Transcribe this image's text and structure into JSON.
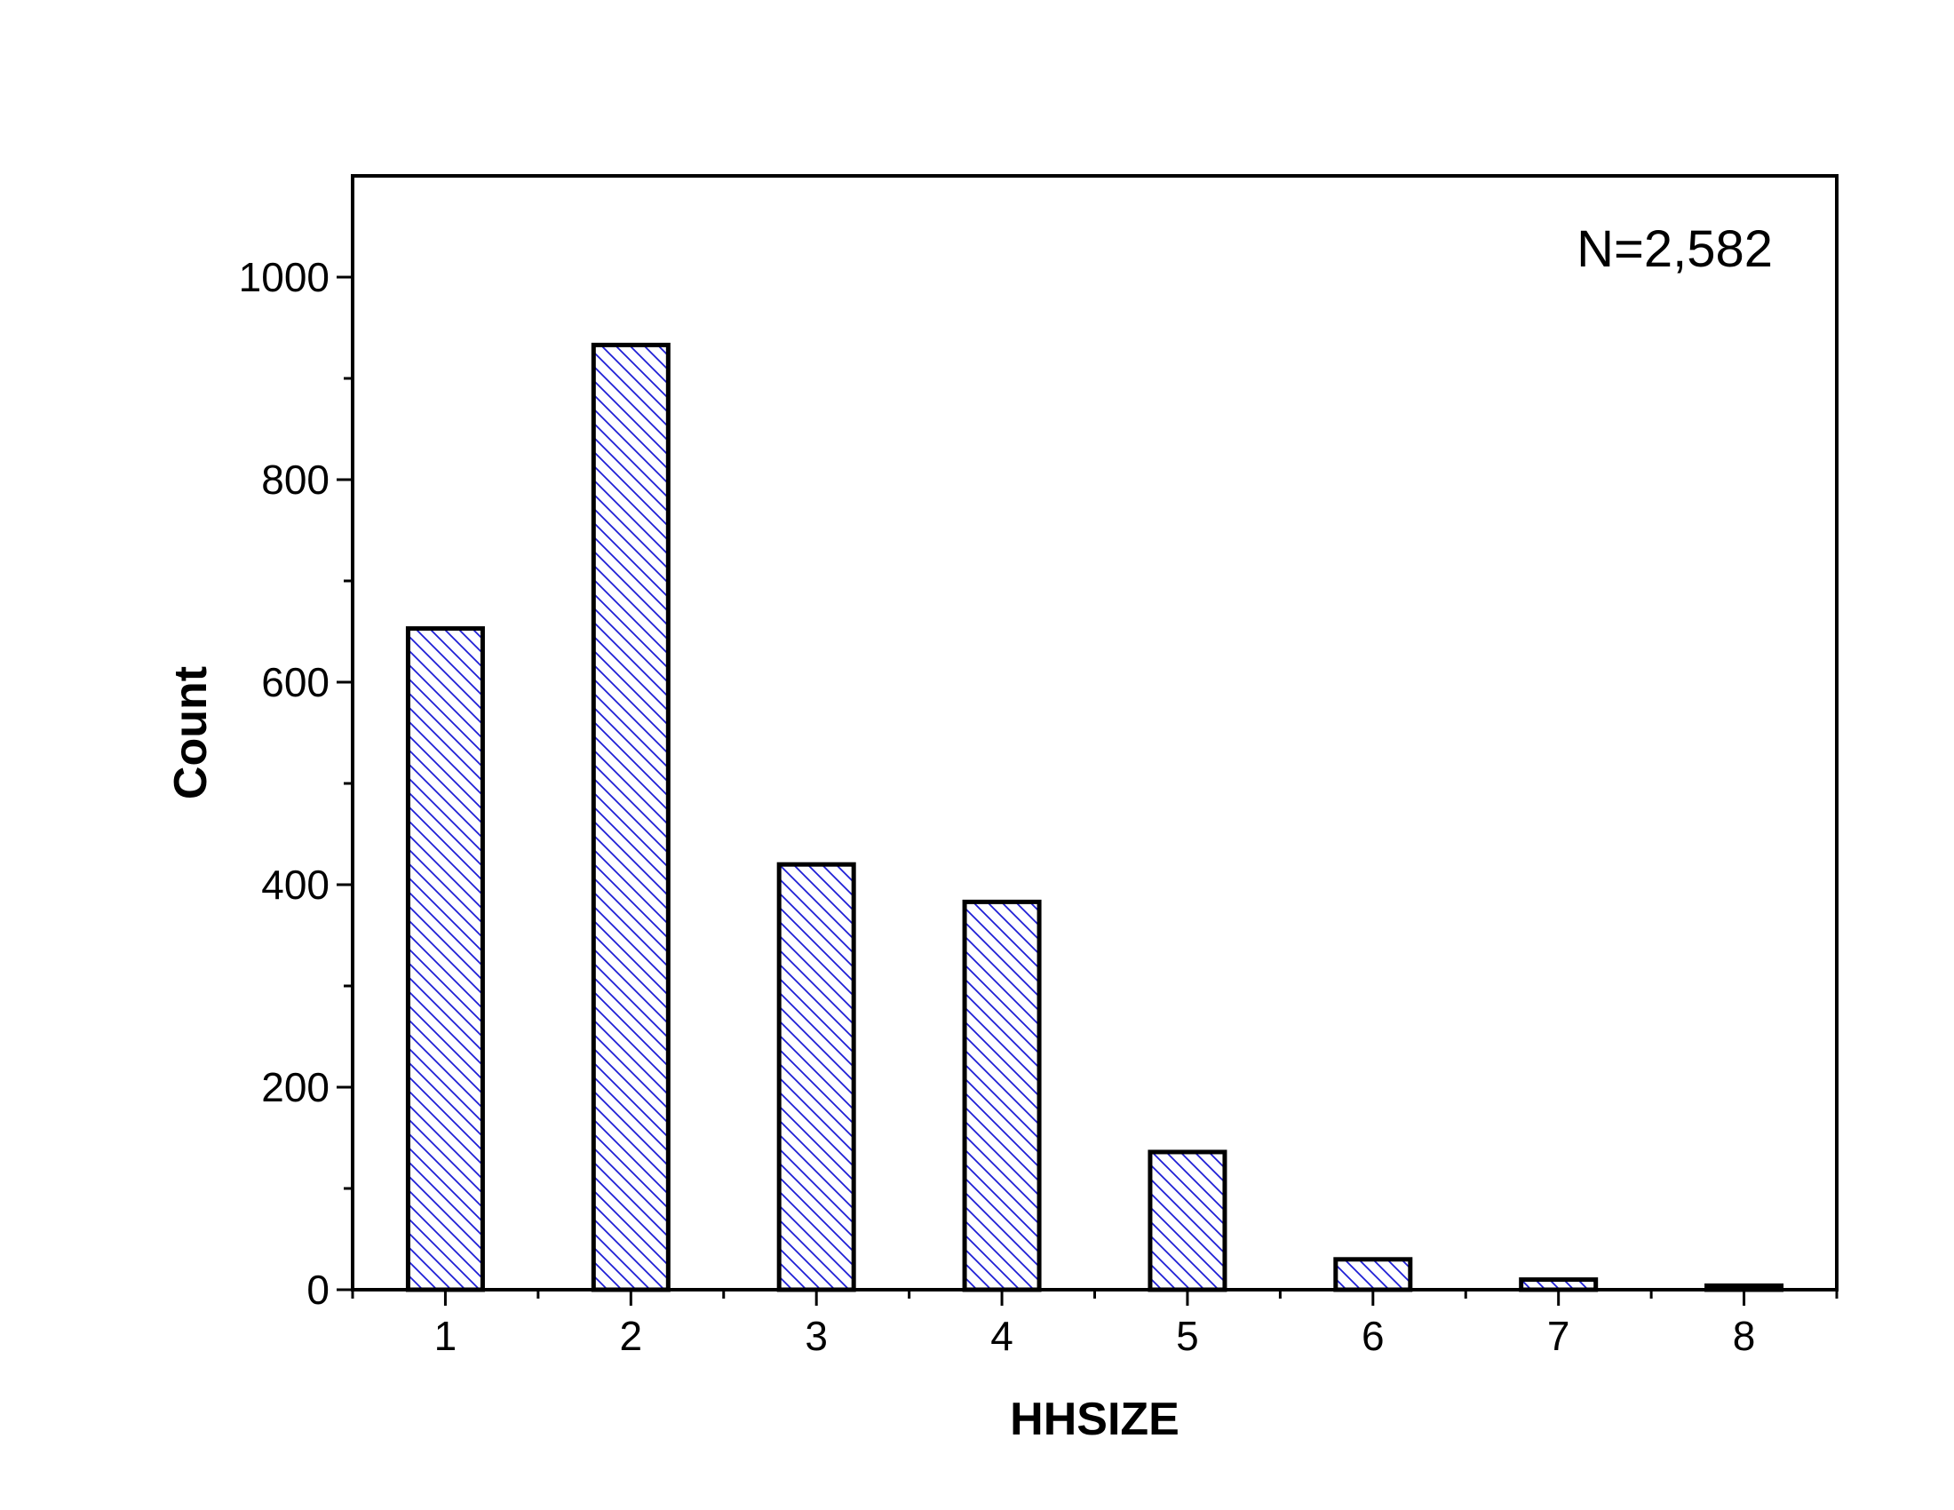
{
  "chart_data": {
    "type": "bar",
    "title": "",
    "xlabel": "HHSIZE",
    "ylabel": "Count",
    "categories": [
      "1",
      "2",
      "3",
      "4",
      "5",
      "6",
      "7",
      "8"
    ],
    "values": [
      653,
      933,
      420,
      383,
      136,
      30,
      10,
      4
    ],
    "ylim": [
      0,
      1100
    ],
    "yticks": [
      0,
      200,
      400,
      600,
      800,
      1000
    ],
    "ytick_labels": [
      "0",
      "200",
      "400",
      "600",
      "800",
      "1000"
    ],
    "annotation": "N=2,582",
    "annotation_position": "top-right",
    "grid": false,
    "legend": false,
    "bar_fill": "hatched diagonal",
    "colors": {
      "hatch": "#1f1fd6",
      "bar_fill": "#ffffff",
      "bar_edge": "#000000",
      "axis": "#000000"
    }
  }
}
